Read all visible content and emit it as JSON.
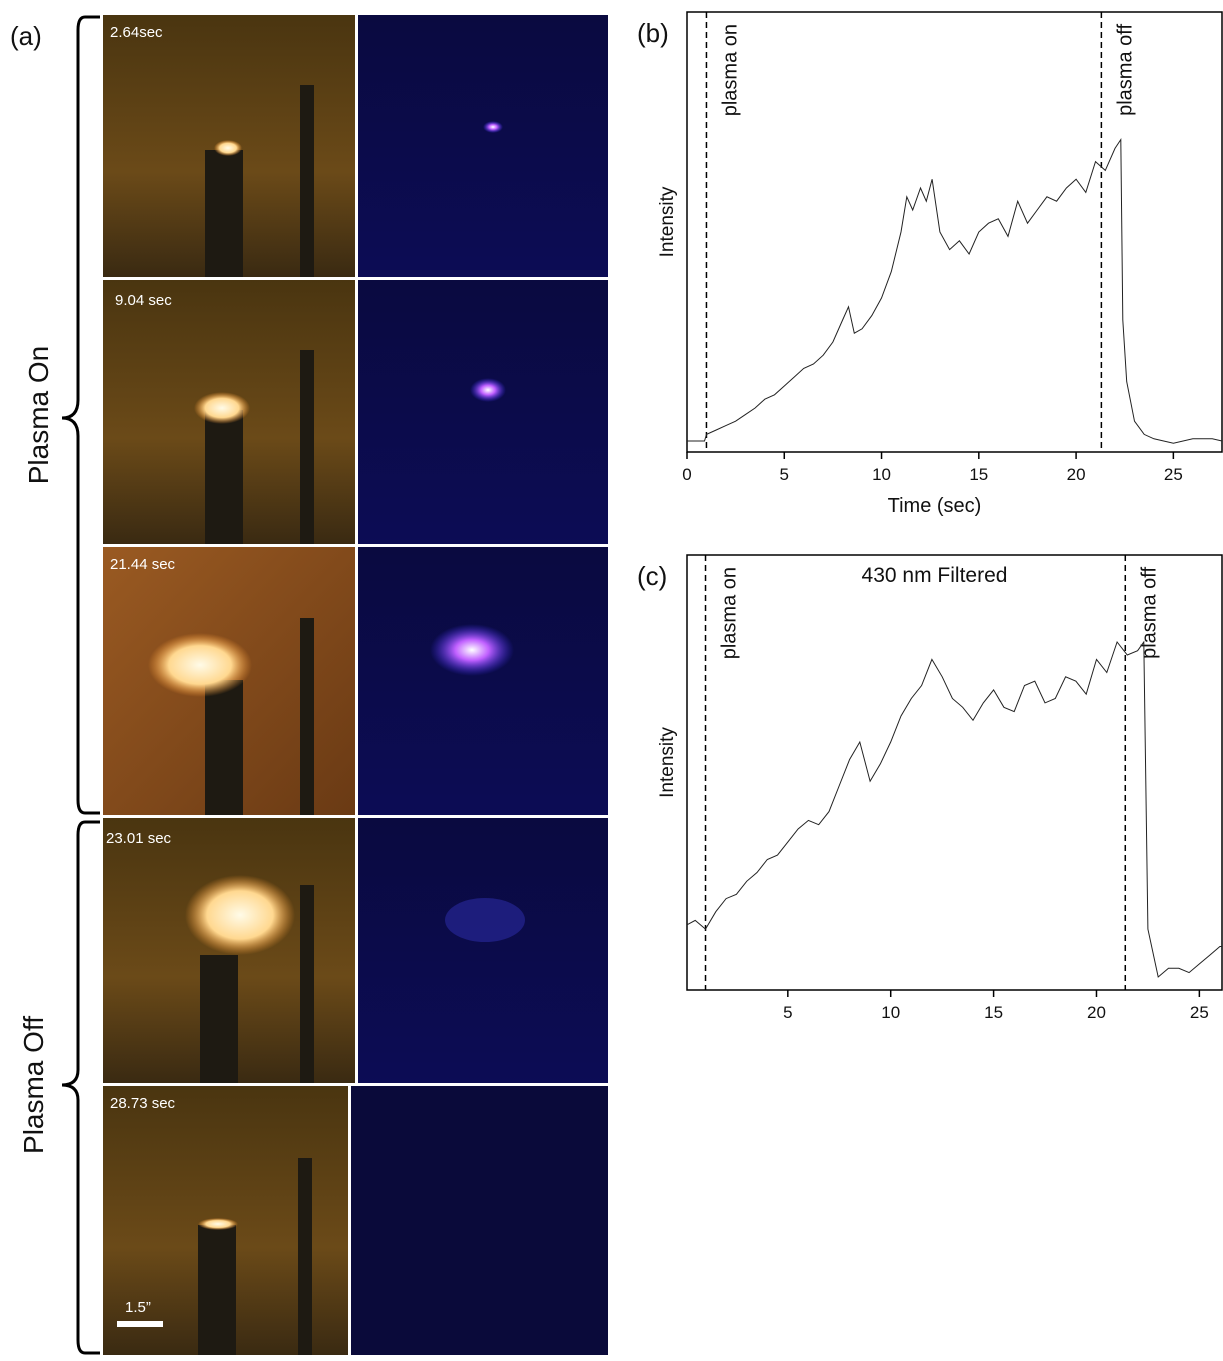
{
  "photo_panel": {
    "label": "(a)",
    "groups": [
      "Plasma On",
      "Plasma Off"
    ],
    "timestamps": [
      "2.64sec",
      "9.04 sec",
      "21.44 sec",
      "23.01 sec",
      "28.73 sec"
    ],
    "scale_bar": "1.5”"
  },
  "chart_data": [
    {
      "type": "line",
      "label": "(b)",
      "xlabel": "Time (sec)",
      "ylabel": "Intensity",
      "color": "#222222",
      "xlim": [
        0,
        27.5
      ],
      "xticks": [
        0,
        5,
        10,
        15,
        20,
        25
      ],
      "ylim": [
        0,
        100
      ],
      "markers": [
        {
          "x": 1.0,
          "label": "plasma on"
        },
        {
          "x": 21.3,
          "label": "plasma off"
        }
      ],
      "x": [
        0,
        0.9,
        1.0,
        1.5,
        2,
        2.5,
        3,
        3.5,
        4,
        4.5,
        5,
        5.5,
        6,
        6.5,
        7,
        7.5,
        8,
        8.3,
        8.6,
        9,
        9.5,
        10,
        10.5,
        11,
        11.3,
        11.6,
        12,
        12.3,
        12.6,
        13,
        13.5,
        14,
        14.5,
        15,
        15.5,
        16,
        16.5,
        17,
        17.5,
        18,
        18.5,
        19,
        19.5,
        20,
        20.5,
        21,
        21.5,
        22,
        22.3,
        22.4,
        22.6,
        23,
        23.5,
        24,
        25,
        26,
        27,
        27.5
      ],
      "values": [
        2.5,
        2.5,
        4,
        5,
        6,
        7,
        8.5,
        10,
        12,
        13,
        15,
        17,
        19,
        20,
        22,
        25,
        30,
        33,
        27,
        28,
        31,
        35,
        41,
        50,
        58,
        55,
        60,
        57,
        62,
        50,
        46,
        48,
        45,
        50,
        52,
        53,
        49,
        57,
        52,
        55,
        58,
        57,
        60,
        62,
        59,
        66,
        64,
        69,
        71,
        30,
        16,
        7,
        4,
        3,
        2,
        3,
        3,
        2.5
      ]
    },
    {
      "type": "line",
      "label": "(c)",
      "title": "430 nm Filtered",
      "ylabel": "Intensity",
      "color": "#222222",
      "xlim": [
        0.1,
        26.1
      ],
      "xticks": [
        5,
        10,
        15,
        20,
        25
      ],
      "ylim": [
        0,
        100
      ],
      "markers": [
        {
          "x": 1.0,
          "label": "plasma on"
        },
        {
          "x": 21.4,
          "label": "plasma off"
        }
      ],
      "x": [
        0.1,
        0.5,
        1,
        1.5,
        2,
        2.5,
        3,
        3.5,
        4,
        4.5,
        5,
        5.5,
        6,
        6.5,
        7,
        7.5,
        8,
        8.5,
        9,
        9.5,
        10,
        10.5,
        11,
        11.5,
        12,
        12.5,
        13,
        13.5,
        14,
        14.5,
        15,
        15.5,
        16,
        16.5,
        17,
        17.5,
        18,
        18.5,
        19,
        19.5,
        20,
        20.5,
        21,
        21.5,
        22,
        22.3,
        22.5,
        23,
        23.5,
        24,
        24.5,
        25,
        25.5,
        26,
        26.1
      ],
      "values": [
        15,
        16,
        14,
        18,
        21,
        22,
        25,
        27,
        30,
        31,
        34,
        37,
        39,
        38,
        41,
        47,
        53,
        57,
        48,
        52,
        57,
        63,
        67,
        70,
        76,
        72,
        67,
        65,
        62,
        66,
        69,
        65,
        64,
        70,
        71,
        66,
        67,
        72,
        71,
        68,
        76,
        73,
        80,
        77,
        78,
        80,
        14,
        3,
        5,
        5,
        4,
        6,
        8,
        10,
        10
      ]
    }
  ]
}
